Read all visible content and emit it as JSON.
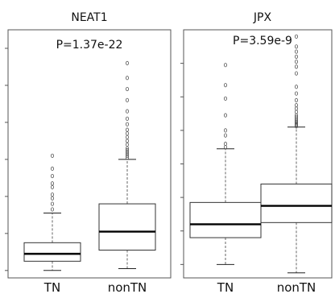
{
  "chart_data": [
    {
      "type": "box",
      "title": "NEAT1",
      "annotation": "P=1.37e-22",
      "categories": [
        "TN",
        "nonTN"
      ],
      "boxes": [
        {
          "category": "TN",
          "whisker_low": 0.0,
          "q1": 0.25,
          "median": 0.45,
          "q3": 0.75,
          "whisker_high": 1.55,
          "outliers": [
            1.65,
            1.8,
            1.95,
            2.05,
            2.25,
            2.35,
            2.55,
            2.75,
            3.1
          ]
        },
        {
          "category": "nonTN",
          "whisker_low": 0.05,
          "q1": 0.55,
          "median": 1.05,
          "q3": 1.8,
          "whisker_high": 3.0,
          "outliers": [
            3.05,
            3.1,
            3.15,
            3.2,
            3.25,
            3.3,
            3.4,
            3.5,
            3.6,
            3.7,
            3.8,
            3.95,
            4.1,
            4.3,
            4.6,
            4.9,
            5.2,
            5.6
          ]
        }
      ],
      "ylim": [
        -0.2,
        6.5
      ],
      "grid": false
    },
    {
      "type": "box",
      "title": "JPX",
      "annotation": "P=3.59e-9",
      "categories": [
        "TN",
        "nonTN"
      ],
      "boxes": [
        {
          "category": "TN",
          "whisker_low": 0.0,
          "q1": 0.8,
          "median": 1.2,
          "q3": 1.85,
          "whisker_high": 3.45,
          "outliers": [
            3.5,
            3.6,
            3.85,
            4.0,
            4.45,
            4.95,
            5.35,
            5.95
          ]
        },
        {
          "category": "nonTN",
          "whisker_low": -0.25,
          "q1": 1.25,
          "median": 1.75,
          "q3": 2.4,
          "whisker_high": 4.1,
          "outliers": [
            4.12,
            4.15,
            4.18,
            4.22,
            4.26,
            4.3,
            4.35,
            4.4,
            4.45,
            4.55,
            4.65,
            4.75,
            4.9,
            5.1,
            5.3,
            5.7,
            5.9,
            6.05,
            6.2,
            6.35,
            6.5,
            6.8
          ]
        }
      ],
      "ylim": [
        -0.4,
        7.0
      ],
      "grid": false
    }
  ]
}
